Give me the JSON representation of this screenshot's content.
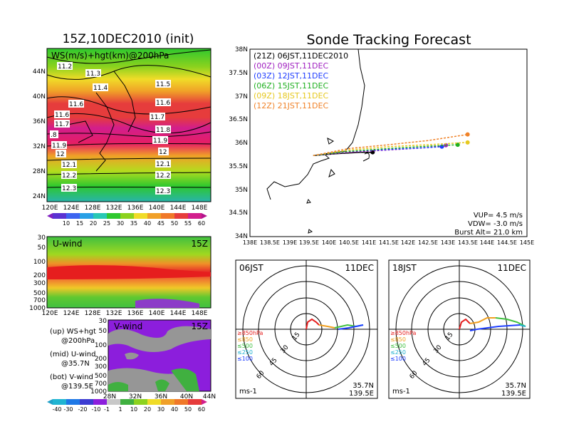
{
  "left_panel": {
    "title": "15Z,10DEC2010 (init)",
    "map_label": "WS(m/s)+hgt(km)@200hPa",
    "lat_ticks": [
      "44N",
      "40N",
      "36N",
      "32N",
      "28N",
      "24N"
    ],
    "lon_ticks": [
      "120E",
      "124E",
      "128E",
      "132E",
      "136E",
      "140E",
      "144E",
      "148E"
    ],
    "contour_labels": [
      "11.2",
      "11.3",
      "11.4",
      "11.5",
      "11.6",
      "11.5",
      "11.6",
      "11.7",
      "11.8",
      "11.9",
      "11.6",
      "11.7",
      ".8",
      "11.9",
      "12",
      "12.1",
      "12.2",
      "12.3",
      "12",
      "12.1",
      "12.2",
      "12.3"
    ],
    "colorbar_ticks": [
      "10",
      "15",
      "20",
      "25",
      "30",
      "35",
      "40",
      "45",
      "50",
      "55",
      "60"
    ]
  },
  "uwind_panel": {
    "label": "U-wind",
    "time": "15Z",
    "p_ticks": [
      "30",
      "50",
      "100",
      "200",
      "300",
      "500",
      "700",
      "1000"
    ],
    "lon_ticks": [
      "120E",
      "124E",
      "128E",
      "132E",
      "136E",
      "140E",
      "144E",
      "148E"
    ]
  },
  "vwind_panel": {
    "label": "V-wind",
    "time": "15Z",
    "p_ticks": [
      "30",
      "50",
      "100",
      "200",
      "300",
      "500",
      "700",
      "1000"
    ],
    "lat_ticks": [
      "28N",
      "32N",
      "36N",
      "40N",
      "44N"
    ]
  },
  "legend_text": [
    {
      "a": "(up) WS+hgt",
      "b": "@200hPa"
    },
    {
      "a": "(mid) U-wind",
      "b": "@35.7N"
    },
    {
      "a": "(bot) V-wind",
      "b": "@139.5E"
    }
  ],
  "bottom_colorbar_ticks": [
    "-40",
    "-30",
    "-20",
    "-10",
    "-1",
    "1",
    "10",
    "20",
    "30",
    "40",
    "50",
    "60"
  ],
  "track_panel": {
    "title": "Sonde Tracking Forecast",
    "lat_ticks": [
      "38N",
      "37.5N",
      "37N",
      "36.5N",
      "36N",
      "35.5N",
      "35N",
      "34.5N",
      "34N"
    ],
    "lon_ticks": [
      "138E",
      "138.5E",
      "139E",
      "139.5E",
      "140E",
      "140.5E",
      "141E",
      "141.5E",
      "142E",
      "142.5E",
      "143E",
      "143.5E",
      "144E",
      "144.5E",
      "145E"
    ],
    "legend": [
      {
        "label": "(21Z)  06JST,11DEC2010",
        "color": "#000000"
      },
      {
        "label": "(00Z)  09JST,11DEC",
        "color": "#a020c0"
      },
      {
        "label": "(03Z)  12JST,11DEC",
        "color": "#1e3cff"
      },
      {
        "label": "(06Z)  15JST,11DEC",
        "color": "#20b020"
      },
      {
        "label": "(09Z)  18JST,11DEC",
        "color": "#e6c81e"
      },
      {
        "label": "(12Z)  21JST,11DEC",
        "color": "#f08228"
      }
    ],
    "params": [
      "VUP=  4.5 m/s",
      "VDW= -3.0 m/s",
      "Burst Alt= 21.0 km"
    ]
  },
  "hodo_left": {
    "time": "06JST",
    "date": "11DEC",
    "lat": "35.7N",
    "lon": "139.5E",
    "unit": "ms-1",
    "ring_labels": [
      "15",
      "30",
      "45",
      "60"
    ],
    "levels": [
      "≥850hPa",
      "≤850",
      "≤500",
      "≤250",
      "≤100"
    ]
  },
  "hodo_right": {
    "time": "18JST",
    "date": "11DEC",
    "lat": "35.7N",
    "lon": "139.5E",
    "unit": "ms-1",
    "ring_labels": [
      "15",
      "30",
      "45",
      "60"
    ],
    "levels": [
      "≥850hPa",
      "≤850",
      "≤500",
      "≤250",
      "≤100"
    ]
  },
  "colors": {
    "red": "#e62020",
    "orange": "#f0a020",
    "green": "#40c040",
    "cyan": "#20b0d0",
    "blue": "#2040ff"
  },
  "chart_data": [
    {
      "type": "line",
      "title": "Sonde Tracking Forecast",
      "xlim": [
        138,
        145
      ],
      "ylim": [
        34,
        38
      ],
      "series": [
        {
          "name": "(21Z) 06JST,11DEC2010",
          "x": [
            139.6,
            140.2,
            140.8,
            141.1
          ],
          "y": [
            35.73,
            35.77,
            35.8,
            35.8
          ]
        },
        {
          "name": "(00Z) 09JST,11DEC",
          "x": [
            139.6,
            140.5,
            141.5,
            142.5,
            142.95
          ],
          "y": [
            35.73,
            35.8,
            35.85,
            35.9,
            35.95
          ]
        },
        {
          "name": "(03Z) 12JST,11DEC",
          "x": [
            139.6,
            140.5,
            141.5,
            142.5,
            142.85
          ],
          "y": [
            35.73,
            35.82,
            35.86,
            35.9,
            35.92
          ]
        },
        {
          "name": "(06Z) 15JST,11DEC",
          "x": [
            139.6,
            140.5,
            141.5,
            142.5,
            143.25
          ],
          "y": [
            35.73,
            35.82,
            35.88,
            35.93,
            35.96
          ]
        },
        {
          "name": "(09Z) 18JST,11DEC",
          "x": [
            139.6,
            140.5,
            141.5,
            142.5,
            143.5
          ],
          "y": [
            35.73,
            35.85,
            35.92,
            35.96,
            36.01
          ]
        },
        {
          "name": "(12Z) 21JST,11DEC",
          "x": [
            139.6,
            140.5,
            141.5,
            142.5,
            143.5
          ],
          "y": [
            35.73,
            35.88,
            35.96,
            36.05,
            36.18
          ]
        }
      ]
    }
  ]
}
